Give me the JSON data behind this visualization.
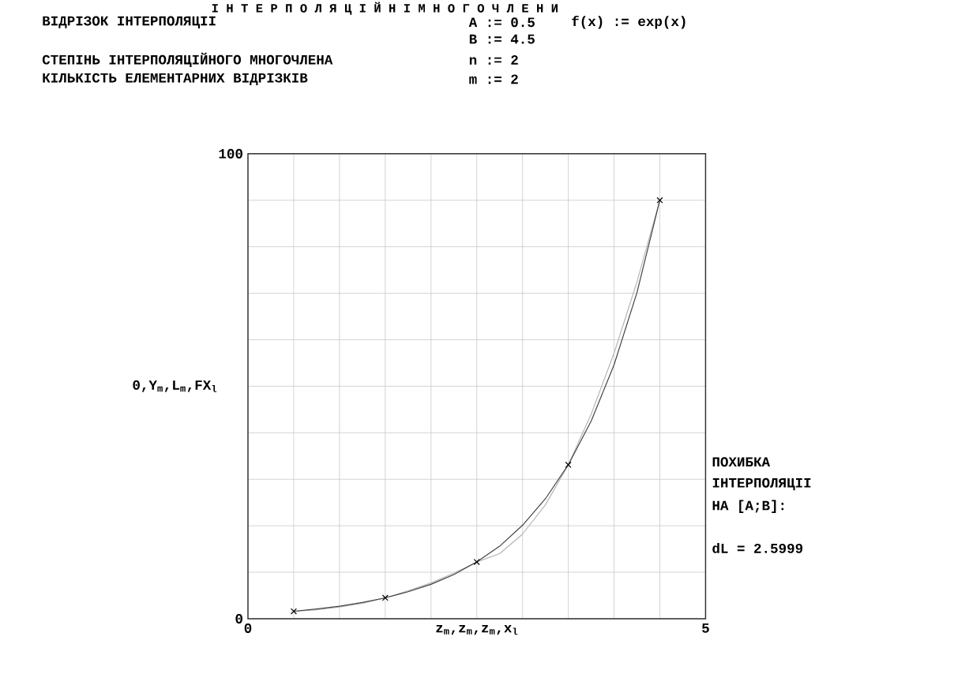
{
  "chart_data": {
    "type": "line",
    "title": "І Н Т Е Р П О Л Я Ц І Й Н І    М Н О Г О Ч Л Е Н И",
    "xlabel": "z$_{m}$,z$_{m}$,z$_{m}$,x$_{l}$",
    "ylabel": "0,Y$_{m}$,L$_{m}$,FX$_{l}$",
    "annotations": [
      "ВІДРІЗОК ІНТЕРПОЛЯЦІІ",
      "A := 0.5",
      "f(x) := exp(x)",
      "B := 4.5",
      "СТЕПІНЬ ІНТЕРПОЛЯЦІЙНОГО МНОГОЧЛЕНА",
      "n := 2",
      "КІЛЬКІСТЬ ЕЛЕМЕНТАРНИХ ВІДРІЗКІВ",
      "m := 2",
      "ПОХИБКА",
      "ІНТЕРПОЛЯЦІІ",
      "НА [A;B]:",
      "dL = 2.5999"
    ],
    "xlim": [
      0,
      5
    ],
    "ylim": [
      0,
      100
    ],
    "xticks": [
      0,
      {
        "value": 0.5,
        "label": null
      },
      {
        "value": 1,
        "label": null
      },
      {
        "value": 1.5,
        "label": null
      },
      {
        "value": 2,
        "label": null
      },
      {
        "value": 2.5,
        "label": null
      },
      {
        "value": 3,
        "label": null
      },
      {
        "value": 3.5,
        "label": null
      },
      {
        "value": 4,
        "label": null
      },
      {
        "value": 4.5,
        "label": null
      },
      5
    ],
    "yticks": [
      0,
      {
        "value": 10,
        "label": null
      },
      {
        "value": 20,
        "label": null
      },
      {
        "value": 30,
        "label": null
      },
      {
        "value": 40,
        "label": null
      },
      {
        "value": 50,
        "label": null
      },
      {
        "value": 60,
        "label": null
      },
      {
        "value": 70,
        "label": null
      },
      {
        "value": 80,
        "label": null
      },
      {
        "value": 90,
        "label": null
      },
      100
    ],
    "grid": true,
    "series": [
      {
        "color": "#b4b4b4",
        "x": [
          0.5,
          0.75,
          1,
          1.25,
          1.5,
          1.75,
          2,
          2.25,
          2.5,
          2.75,
          3,
          3.25,
          3.5,
          3.75,
          4,
          4.25,
          4.5
        ],
        "values": [
          1.6,
          1.9,
          2.5,
          3.3,
          4.5,
          6.0,
          7.7,
          9.8,
          12.2,
          14.0,
          18.2,
          24.5,
          33.1,
          44.0,
          57.1,
          72.4,
          90.0
        ]
      },
      {
        "color": "#404040",
        "x": [
          0.5,
          0.75,
          1,
          1.25,
          1.5,
          1.75,
          2,
          2.25,
          2.5,
          2.75,
          3,
          3.25,
          3.5,
          3.75,
          4,
          4.25,
          4.5
        ],
        "values": [
          1.6,
          2.1,
          2.7,
          3.5,
          4.5,
          5.8,
          7.4,
          9.5,
          12.2,
          15.6,
          20.1,
          25.8,
          33.1,
          42.5,
          54.6,
          70.1,
          90.0
        ]
      },
      {
        "type": "scatter",
        "marker": "cross",
        "color": "#000000",
        "x": [
          0.5,
          1.5,
          2.5,
          3.5,
          4.5
        ],
        "values": [
          1.6,
          4.5,
          12.2,
          33.1,
          90.0
        ]
      }
    ]
  }
}
